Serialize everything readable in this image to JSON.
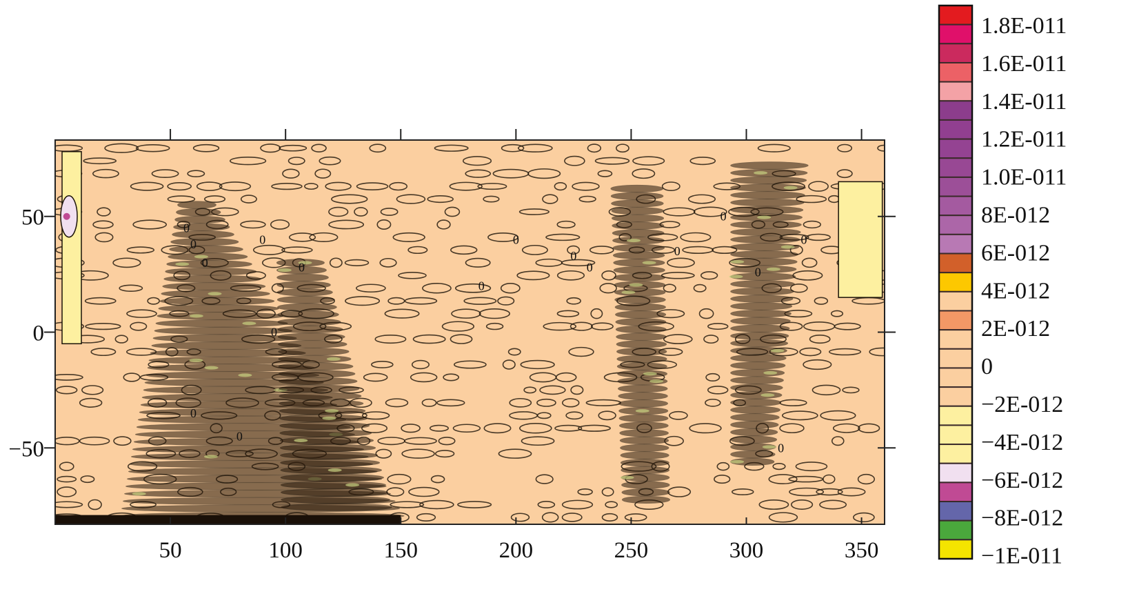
{
  "chart_data": {
    "type": "heatmap",
    "subtype": "filled-contour",
    "title": "",
    "xlabel": "",
    "ylabel": "",
    "xlim": [
      0,
      360
    ],
    "ylim": [
      -83,
      83
    ],
    "x_ticks": [
      50,
      100,
      150,
      200,
      250,
      300,
      350
    ],
    "x_tick_labels": [
      "50",
      "100",
      "150",
      "200",
      "250",
      "300",
      "350"
    ],
    "y_ticks": [
      50,
      0,
      -50
    ],
    "y_tick_labels": [
      "50",
      "0",
      "−50"
    ],
    "contour_label": "0",
    "background_color": "#fbcfa0",
    "contour_line_color": "#1a1208",
    "colorbar": {
      "position": "right",
      "labels": [
        "1.8E-011",
        "1.6E-011",
        "1.4E-011",
        "1.2E-011",
        "1.0E-011",
        "8E-012",
        "6E-012",
        "4E-012",
        "2E-012",
        "0",
        "−2E-012",
        "−4E-012",
        "−6E-012",
        "−8E-012",
        "−1E-011"
      ],
      "colors": [
        "#e31b1f",
        "#e0106a",
        "#cb2a5e",
        "#ec6166",
        "#f3a2a6",
        "#8c3d8c",
        "#913f90",
        "#944392",
        "#984894",
        "#9c4f98",
        "#a45aa0",
        "#ac66a8",
        "#b879b4",
        "#d2602a",
        "#fdc800",
        "#fbcfa0",
        "#f39866",
        "#fbcfa0",
        "#fbcfa0",
        "#fbcfa0",
        "#fbcfa0",
        "#fdf0a0",
        "#fdf0a0",
        "#fdf0a0",
        "#f1e0f0",
        "#c04a94",
        "#6466aa",
        "#4aa83c",
        "#f4e400"
      ]
    }
  }
}
